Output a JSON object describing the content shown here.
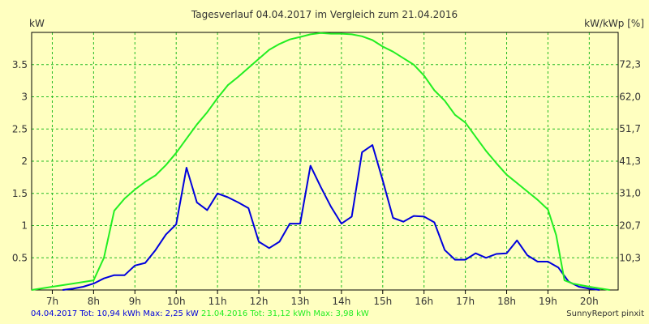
{
  "chart_data": {
    "type": "line",
    "title": "Tagesverlauf 04.04.2017 im Vergleich zum 21.04.2016",
    "ylabel_left": "kW",
    "ylabel_right": "kW/kWp [%]",
    "x_tick_labels": [
      "7h",
      "8h",
      "9h",
      "10h",
      "11h",
      "12h",
      "13h",
      "14h",
      "15h",
      "16h",
      "17h",
      "18h",
      "19h",
      "20h"
    ],
    "x_ticks": [
      7,
      8,
      9,
      10,
      11,
      12,
      13,
      14,
      15,
      16,
      17,
      18,
      19,
      20
    ],
    "xlim": [
      6.5,
      20.7
    ],
    "y_ticks_left": [
      0.5,
      1,
      1.5,
      2,
      2.5,
      3,
      3.5
    ],
    "y_tick_labels_left": [
      "0.5",
      "1",
      "1.5",
      "2",
      "2.5",
      "3",
      "3.5"
    ],
    "y_ticks_right": [
      10.3,
      20.7,
      31.0,
      41.3,
      51.7,
      62.0,
      72.3
    ],
    "y_tick_labels_right": [
      "10,3",
      "20,7",
      "31,0",
      "41,3",
      "51,7",
      "62,0",
      "72,3"
    ],
    "ylim_left": [
      0,
      4.0
    ],
    "ylim_right": [
      0,
      82.6
    ],
    "grid": true,
    "series": [
      {
        "name": "04.04.2017",
        "color": "#0000dd",
        "x": [
          7.25,
          7.5,
          7.75,
          8,
          8.25,
          8.5,
          8.75,
          9,
          9.25,
          9.5,
          9.75,
          10,
          10.25,
          10.5,
          10.75,
          11,
          11.25,
          11.5,
          11.75,
          12,
          12.25,
          12.5,
          12.75,
          13,
          13.25,
          13.5,
          13.75,
          14,
          14.25,
          14.5,
          14.75,
          15,
          15.25,
          15.5,
          15.75,
          16,
          16.25,
          16.5,
          16.75,
          17,
          17.25,
          17.5,
          17.75,
          18,
          18.25,
          18.5,
          18.75,
          19,
          19.25,
          19.5,
          19.75,
          20,
          20.25
        ],
        "y": [
          0.0,
          0.02,
          0.05,
          0.1,
          0.18,
          0.23,
          0.23,
          0.38,
          0.42,
          0.62,
          0.86,
          1.02,
          1.9,
          1.36,
          1.24,
          1.5,
          1.44,
          1.36,
          1.27,
          0.75,
          0.65,
          0.75,
          1.03,
          1.03,
          1.93,
          1.6,
          1.29,
          1.03,
          1.14,
          2.14,
          2.25,
          1.7,
          1.12,
          1.06,
          1.15,
          1.14,
          1.05,
          0.62,
          0.47,
          0.47,
          0.57,
          0.5,
          0.56,
          0.57,
          0.77,
          0.54,
          0.44,
          0.44,
          0.35,
          0.13,
          0.05,
          0.02,
          0.0
        ]
      },
      {
        "name": "21.04.2016",
        "color": "#22ee22",
        "x": [
          6.5,
          7,
          7.5,
          8,
          8.25,
          8.5,
          8.75,
          9,
          9.25,
          9.5,
          9.75,
          10,
          10.25,
          10.5,
          10.75,
          11,
          11.25,
          11.5,
          11.75,
          12,
          12.25,
          12.5,
          12.75,
          13,
          13.25,
          13.5,
          13.75,
          14,
          14.25,
          14.5,
          14.75,
          15,
          15.25,
          15.5,
          15.75,
          16,
          16.25,
          16.5,
          16.75,
          17,
          17.25,
          17.5,
          17.75,
          18,
          18.25,
          18.5,
          18.75,
          19,
          19.2,
          19.4,
          19.6,
          20,
          20.5
        ],
        "y": [
          0.0,
          0.05,
          0.1,
          0.15,
          0.5,
          1.23,
          1.42,
          1.56,
          1.68,
          1.78,
          1.94,
          2.13,
          2.35,
          2.57,
          2.76,
          2.98,
          3.18,
          3.31,
          3.45,
          3.59,
          3.73,
          3.82,
          3.89,
          3.93,
          3.97,
          3.99,
          3.98,
          3.98,
          3.97,
          3.94,
          3.88,
          3.78,
          3.7,
          3.6,
          3.5,
          3.33,
          3.1,
          2.94,
          2.72,
          2.6,
          2.38,
          2.16,
          1.97,
          1.79,
          1.66,
          1.53,
          1.4,
          1.25,
          0.85,
          0.15,
          0.1,
          0.05,
          0.0
        ]
      }
    ]
  },
  "footer": {
    "series1_text": "04.04.2017 Tot: 10,94 kWh Max: 2,25 kW",
    "series2_text": "21.04.2016 Tot: 31,12 kWh Max: 3,98 kW",
    "series1_color": "#0000dd",
    "series2_color": "#22ee22",
    "credit": "SunnyReport pinxit"
  }
}
